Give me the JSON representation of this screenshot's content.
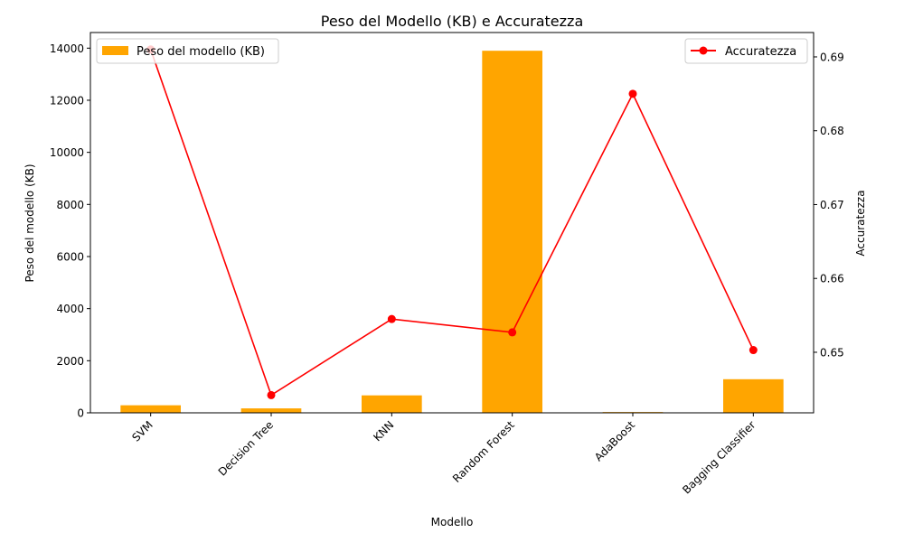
{
  "chart_data": {
    "type": "bar+line",
    "title": "Peso del Modello (KB) e Accuratezza",
    "xlabel": "Modello",
    "ylabel_left": "Peso del modello (KB)",
    "ylabel_right": "Accuratezza",
    "categories": [
      "SVM",
      "Decision Tree",
      "KNN",
      "Random Forest",
      "AdaBoost",
      "Bagging Classifier"
    ],
    "series": [
      {
        "name": "Peso del modello (KB)",
        "type": "bar",
        "axis": "left",
        "color": "#ffa500",
        "values": [
          290,
          170,
          670,
          13900,
          30,
          1290
        ]
      },
      {
        "name": "Accuratezza",
        "type": "line",
        "axis": "right",
        "color": "#ff0000",
        "marker": "circle",
        "values": [
          0.691,
          0.6442,
          0.6545,
          0.6527,
          0.685,
          0.6503
        ]
      }
    ],
    "ylim_left": [
      0,
      14600
    ],
    "yticks_left": [
      0,
      2000,
      4000,
      6000,
      8000,
      10000,
      12000,
      14000
    ],
    "ylim_right": [
      0.6418,
      0.6933
    ],
    "yticks_right": [
      0.65,
      0.66,
      0.67,
      0.68,
      0.69
    ],
    "legend_left_position": "upper-left",
    "legend_right_position": "upper-right",
    "grid": false
  }
}
